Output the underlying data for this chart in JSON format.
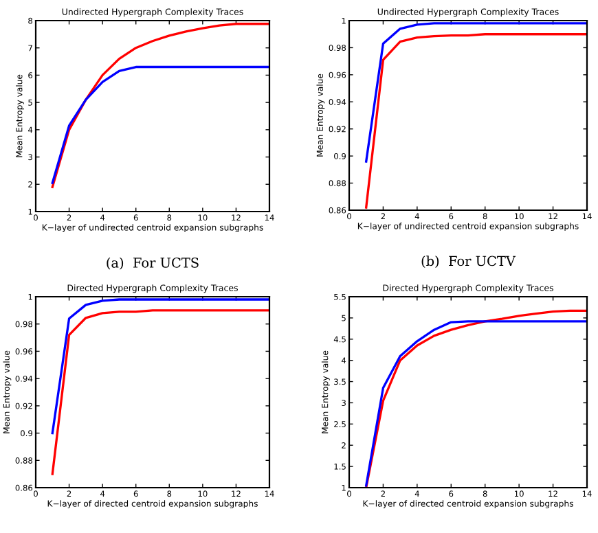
{
  "chart_data": [
    {
      "type": "line",
      "title": "Undirected Hypergraph Complexity Traces",
      "xlabel": "K−layer of undirected centroid expansion subgraphs",
      "ylabel": "Mean Entropy value",
      "annotations": [
        "(a)  For UCTS"
      ],
      "x": [
        1,
        2,
        3,
        4,
        5,
        6,
        7,
        8,
        9,
        10,
        11,
        12,
        13,
        14
      ],
      "xlim": [
        0,
        14
      ],
      "xticks": [
        0,
        2,
        4,
        6,
        8,
        10,
        12,
        14
      ],
      "ylim": [
        1,
        8
      ],
      "yticks": [
        1,
        2,
        3,
        4,
        5,
        6,
        7,
        8
      ],
      "grid": false,
      "legend": false,
      "marker": "none",
      "line_style": "solid",
      "series": [
        {
          "color": "#ff0000",
          "values": [
            1.9,
            4.0,
            5.1,
            6.0,
            6.6,
            7.0,
            7.25,
            7.45,
            7.6,
            7.72,
            7.82,
            7.88,
            7.88,
            7.88
          ]
        },
        {
          "color": "#0000ff",
          "values": [
            2.05,
            4.15,
            5.1,
            5.75,
            6.15,
            6.3,
            6.3,
            6.3,
            6.3,
            6.3,
            6.3,
            6.3,
            6.3,
            6.3
          ]
        }
      ]
    },
    {
      "type": "line",
      "title": "Undirected Hypergraph Complexity Traces",
      "xlabel": "K−layer of undirected centroid expansion subgraphs",
      "ylabel": "Mean Entropy value",
      "annotations": [
        "(b)  For UCTV"
      ],
      "x": [
        1,
        2,
        3,
        4,
        5,
        6,
        7,
        8,
        9,
        10,
        11,
        12,
        13,
        14
      ],
      "xlim": [
        0,
        14
      ],
      "xticks": [
        0,
        2,
        4,
        6,
        8,
        10,
        12,
        14
      ],
      "ylim": [
        0.86,
        1
      ],
      "yticks": [
        0.86,
        0.88,
        0.9,
        0.92,
        0.94,
        0.96,
        0.98,
        1
      ],
      "grid": false,
      "legend": false,
      "marker": "none",
      "line_style": "solid",
      "series": [
        {
          "color": "#ff0000",
          "values": [
            0.862,
            0.971,
            0.9845,
            0.9875,
            0.9885,
            0.989,
            0.989,
            0.99,
            0.99,
            0.99,
            0.99,
            0.99,
            0.99,
            0.99
          ]
        },
        {
          "color": "#0000ff",
          "values": [
            0.896,
            0.983,
            0.994,
            0.997,
            0.998,
            0.998,
            0.998,
            0.998,
            0.998,
            0.998,
            0.998,
            0.998,
            0.998,
            0.998
          ]
        }
      ]
    },
    {
      "type": "line",
      "title": "Directed Hypergraph Complexity Traces",
      "xlabel": "K−layer of directed centroid expansion subgraphs",
      "ylabel": "Mean Entropy value",
      "x": [
        1,
        2,
        3,
        4,
        5,
        6,
        7,
        8,
        9,
        10,
        11,
        12,
        13,
        14
      ],
      "xlim": [
        0,
        14
      ],
      "xticks": [
        0,
        2,
        4,
        6,
        8,
        10,
        12,
        14
      ],
      "ylim": [
        0.86,
        1
      ],
      "yticks": [
        0.86,
        0.88,
        0.9,
        0.92,
        0.94,
        0.96,
        0.98,
        1
      ],
      "grid": false,
      "legend": false,
      "marker": "none",
      "line_style": "solid",
      "series": [
        {
          "color": "#ff0000",
          "values": [
            0.87,
            0.972,
            0.9845,
            0.988,
            0.989,
            0.989,
            0.99,
            0.99,
            0.99,
            0.99,
            0.99,
            0.99,
            0.99,
            0.99
          ]
        },
        {
          "color": "#0000ff",
          "values": [
            0.9,
            0.984,
            0.994,
            0.997,
            0.998,
            0.998,
            0.998,
            0.998,
            0.998,
            0.998,
            0.998,
            0.998,
            0.998,
            0.998
          ]
        }
      ]
    },
    {
      "type": "line",
      "title": "Directed Hypergraph Complexity Traces",
      "xlabel": "K−layer of directed centroid expansion subgraphs",
      "ylabel": "Mean Entropy value",
      "x": [
        1,
        2,
        3,
        4,
        5,
        6,
        7,
        8,
        9,
        10,
        11,
        12,
        13,
        14
      ],
      "xlim": [
        0,
        14
      ],
      "xticks": [
        0,
        2,
        4,
        6,
        8,
        10,
        12,
        14
      ],
      "ylim": [
        1,
        5.5
      ],
      "yticks": [
        1,
        1.5,
        2,
        2.5,
        3,
        3.5,
        4,
        4.5,
        5,
        5.5
      ],
      "grid": false,
      "legend": false,
      "marker": "none",
      "line_style": "solid",
      "series": [
        {
          "color": "#ff0000",
          "values": [
            1.0,
            3.05,
            4.0,
            4.35,
            4.58,
            4.72,
            4.83,
            4.92,
            4.98,
            5.05,
            5.1,
            5.15,
            5.17,
            5.17
          ]
        },
        {
          "color": "#0000ff",
          "values": [
            1.05,
            3.35,
            4.1,
            4.45,
            4.72,
            4.9,
            4.92,
            4.92,
            4.92,
            4.92,
            4.92,
            4.92,
            4.92,
            4.92
          ]
        }
      ]
    }
  ]
}
